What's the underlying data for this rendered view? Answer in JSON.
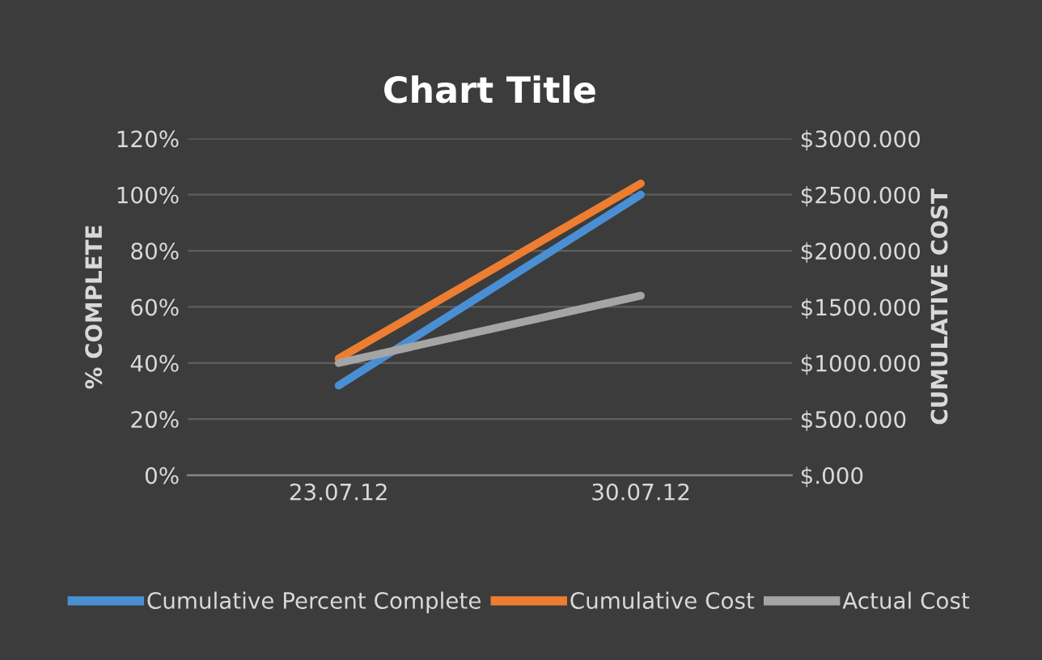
{
  "chart_data": {
    "type": "line",
    "title": "Chart Title",
    "ylabel": "% COMPLETE",
    "y2label": "CUMULATIVE COST",
    "categories": [
      "23.07.12",
      "30.07.12"
    ],
    "series": [
      {
        "name": "Cumulative Percent Complete",
        "color": "#4a8fd4",
        "values": [
          32,
          100
        ]
      },
      {
        "name": "Cumulative Cost",
        "color": "#ed7d31",
        "values": [
          1040,
          2600
        ],
        "axis": "y2"
      },
      {
        "name": "Actual Cost",
        "color": "#a5a5a5",
        "values": [
          1000,
          1600
        ],
        "axis": "y2"
      }
    ],
    "ylim": [
      0,
      120
    ],
    "yticks": [
      {
        "value": 0,
        "label": "0%"
      },
      {
        "value": 20,
        "label": "20%"
      },
      {
        "value": 40,
        "label": "40%"
      },
      {
        "value": 60,
        "label": "60%"
      },
      {
        "value": 80,
        "label": "80%"
      },
      {
        "value": 100,
        "label": "100%"
      },
      {
        "value": 120,
        "label": "120%"
      }
    ],
    "y2lim": [
      0,
      3000
    ],
    "y2ticks": [
      {
        "value": 0,
        "label": "$.000"
      },
      {
        "value": 500,
        "label": "$500.000"
      },
      {
        "value": 1000,
        "label": "$1000.000"
      },
      {
        "value": 1500,
        "label": "$1500.000"
      },
      {
        "value": 2000,
        "label": "$2000.000"
      },
      {
        "value": 2500,
        "label": "$2500.000"
      },
      {
        "value": 3000,
        "label": "$3000.000"
      }
    ],
    "grid": "y",
    "legend": "bottom",
    "marker": "none",
    "line_style": "solid"
  }
}
